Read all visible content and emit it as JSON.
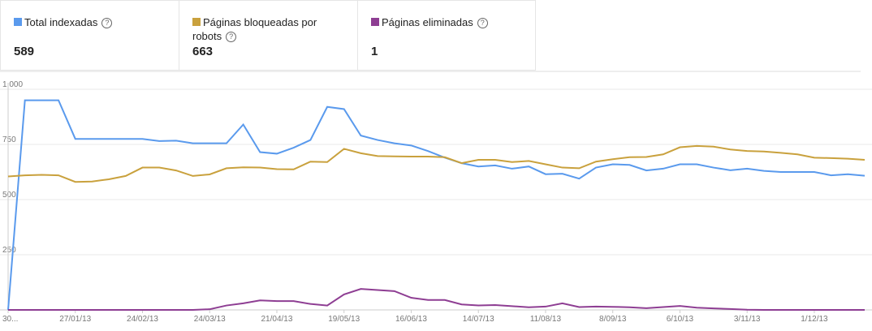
{
  "chart_data": {
    "type": "line",
    "categories": [
      "30...",
      null,
      null,
      null,
      "27/01/13",
      null,
      null,
      null,
      "24/02/13",
      null,
      null,
      null,
      "24/03/13",
      null,
      null,
      null,
      "21/04/13",
      null,
      null,
      null,
      "19/05/13",
      null,
      null,
      null,
      "16/06/13",
      null,
      null,
      null,
      "14/07/13",
      null,
      null,
      null,
      "11/08/13",
      null,
      null,
      null,
      "8/09/13",
      null,
      null,
      null,
      "6/10/13",
      null,
      null,
      null,
      "3/11/13",
      null,
      null,
      null,
      "1/12/13",
      null,
      null,
      null
    ],
    "series": [
      {
        "name": "Total indexadas",
        "total": 589,
        "color": "#5a9aed",
        "values": [
          0,
          950,
          950,
          950,
          775,
          775,
          775,
          775,
          775,
          765,
          767,
          755,
          755,
          755,
          840,
          715,
          708,
          735,
          770,
          920,
          910,
          790,
          770,
          755,
          745,
          720,
          690,
          665,
          650,
          655,
          640,
          650,
          615,
          617,
          595,
          645,
          660,
          657,
          632,
          640,
          660,
          660,
          645,
          633,
          640,
          630,
          625,
          625,
          625,
          610,
          615,
          608
        ]
      },
      {
        "name": "Páginas bloqueadas por robots",
        "total": 663,
        "color": "#c9a13d",
        "values": [
          605,
          610,
          612,
          610,
          580,
          582,
          592,
          607,
          645,
          645,
          632,
          607,
          614,
          642,
          646,
          645,
          638,
          637,
          672,
          670,
          730,
          710,
          697,
          696,
          695,
          695,
          692,
          665,
          680,
          680,
          670,
          675,
          660,
          645,
          642,
          672,
          683,
          692,
          693,
          705,
          737,
          743,
          740,
          727,
          720,
          718,
          712,
          705,
          690,
          688,
          685,
          680
        ]
      },
      {
        "name": "Páginas eliminadas",
        "total": 1,
        "color": "#8e3e93",
        "values": [
          0,
          0,
          0,
          0,
          0,
          0,
          0,
          0,
          0,
          0,
          0,
          0,
          3,
          20,
          30,
          43,
          40,
          40,
          27,
          20,
          70,
          95,
          90,
          85,
          55,
          45,
          45,
          25,
          20,
          22,
          17,
          12,
          15,
          30,
          13,
          15,
          14,
          12,
          8,
          13,
          18,
          10,
          7,
          4,
          1,
          0,
          0,
          0,
          0,
          0,
          0,
          0
        ]
      }
    ],
    "ylim": [
      0,
      1000
    ],
    "yticks": [
      250,
      500,
      750,
      {
        "value": 1000,
        "label": "1.000"
      }
    ],
    "grid": true
  }
}
